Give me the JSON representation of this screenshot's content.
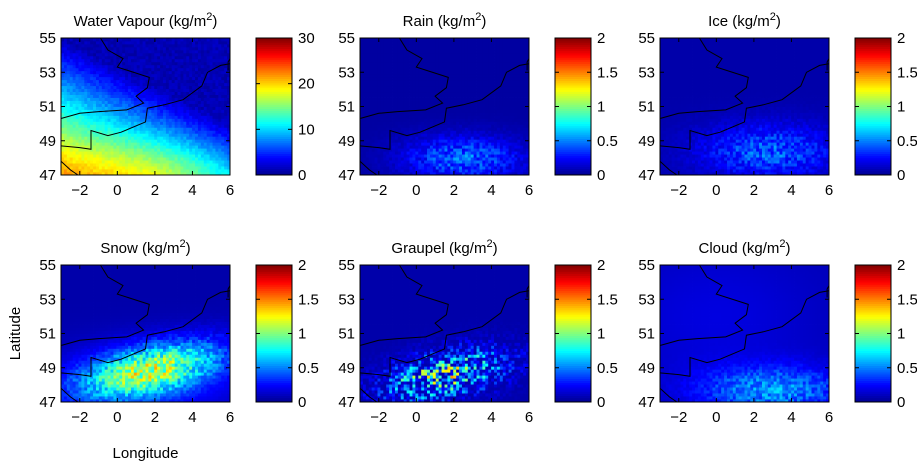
{
  "chart_data": {
    "type": "heatmap",
    "xlabel": "Longitude",
    "ylabel": "Latitude",
    "xlim": [
      -3,
      6
    ],
    "ylim": [
      47,
      55
    ],
    "xticks": [
      "−2",
      "0",
      "2",
      "4",
      "6"
    ],
    "yticks": [
      "47",
      "49",
      "51",
      "53",
      "55"
    ],
    "colormap": "jet",
    "colormap_stops": [
      "#00008f",
      "#0000ff",
      "#00ffff",
      "#ffff00",
      "#ff0000",
      "#800000"
    ],
    "coastline_color": "#000000",
    "panels": [
      {
        "title": "Water Vapour",
        "unit": "kg/m",
        "unit_exp": "2",
        "clim": [
          0,
          30
        ],
        "cbticks": [
          "0",
          "10",
          "20",
          "30"
        ],
        "field": "vapour"
      },
      {
        "title": "Rain",
        "unit": "kg/m",
        "unit_exp": "2",
        "clim": [
          0,
          2
        ],
        "cbticks": [
          "0",
          "0.5",
          "1",
          "1.5",
          "2"
        ],
        "field": "rain"
      },
      {
        "title": "Ice",
        "unit": "kg/m",
        "unit_exp": "2",
        "clim": [
          0,
          2
        ],
        "cbticks": [
          "0",
          "0.5",
          "1",
          "1.5",
          "2"
        ],
        "field": "ice"
      },
      {
        "title": "Snow",
        "unit": "kg/m",
        "unit_exp": "2",
        "clim": [
          0,
          2
        ],
        "cbticks": [
          "0",
          "0.5",
          "1",
          "1.5",
          "2"
        ],
        "field": "snow"
      },
      {
        "title": "Graupel",
        "unit": "kg/m",
        "unit_exp": "2",
        "clim": [
          0,
          2
        ],
        "cbticks": [
          "0",
          "0.5",
          "1",
          "1.5",
          "2"
        ],
        "field": "graupel"
      },
      {
        "title": "Cloud",
        "unit": "kg/m",
        "unit_exp": "2",
        "clim": [
          0,
          2
        ],
        "cbticks": [
          "0",
          "0.5",
          "1",
          "1.5",
          "2"
        ],
        "field": "cloud"
      }
    ]
  }
}
